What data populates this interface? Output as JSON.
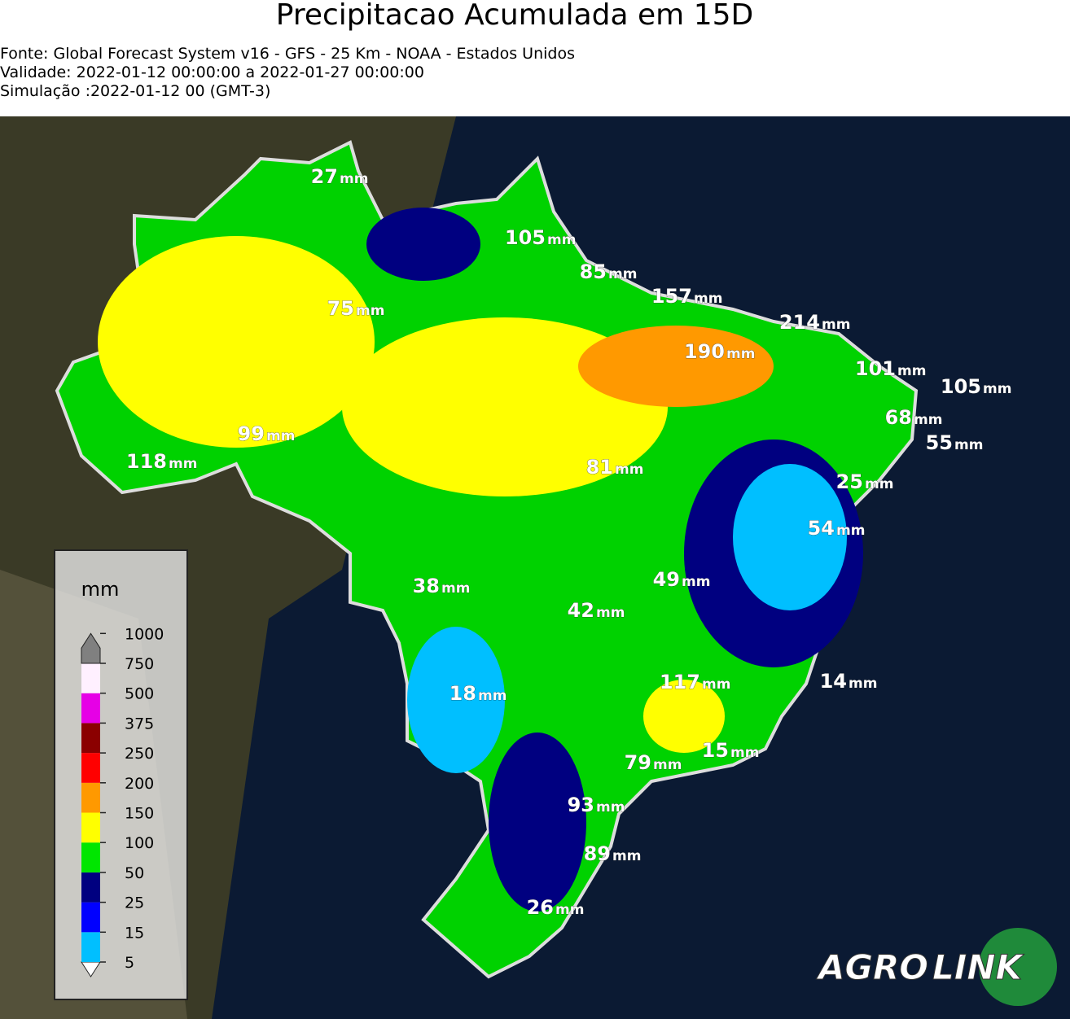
{
  "header": {
    "title": "Precipitacao Acumulada em 15D",
    "lines": [
      "Fonte: Global Forecast System v16 - GFS - 25 Km - NOAA - Estados Unidos",
      "Validade: 2022-01-12 00:00:00 a 2022-01-27 00:00:00",
      "Simulação :2022-01-12 00 (GMT-3)"
    ]
  },
  "map": {
    "unit": "mm",
    "labels": [
      27,
      105,
      85,
      157,
      75,
      214,
      190,
      101,
      105,
      68,
      55,
      99,
      118,
      81,
      25,
      54,
      38,
      49,
      42,
      18,
      117,
      14,
      15,
      79,
      93,
      89,
      26
    ]
  },
  "legend": {
    "title": "mm",
    "ticks": [
      5,
      15,
      25,
      50,
      100,
      150,
      200,
      250,
      375,
      500,
      750,
      1000
    ],
    "colors": [
      "#00bfff",
      "#0000ff",
      "#000080",
      "#00e600",
      "#ffff00",
      "#ff9900",
      "#ff0000",
      "#8b0000",
      "#e600e6",
      "#fff0ff",
      "#808080"
    ],
    "under_color": "#ffffff"
  },
  "logo": {
    "left": "AGRO",
    "right": "LINK"
  }
}
